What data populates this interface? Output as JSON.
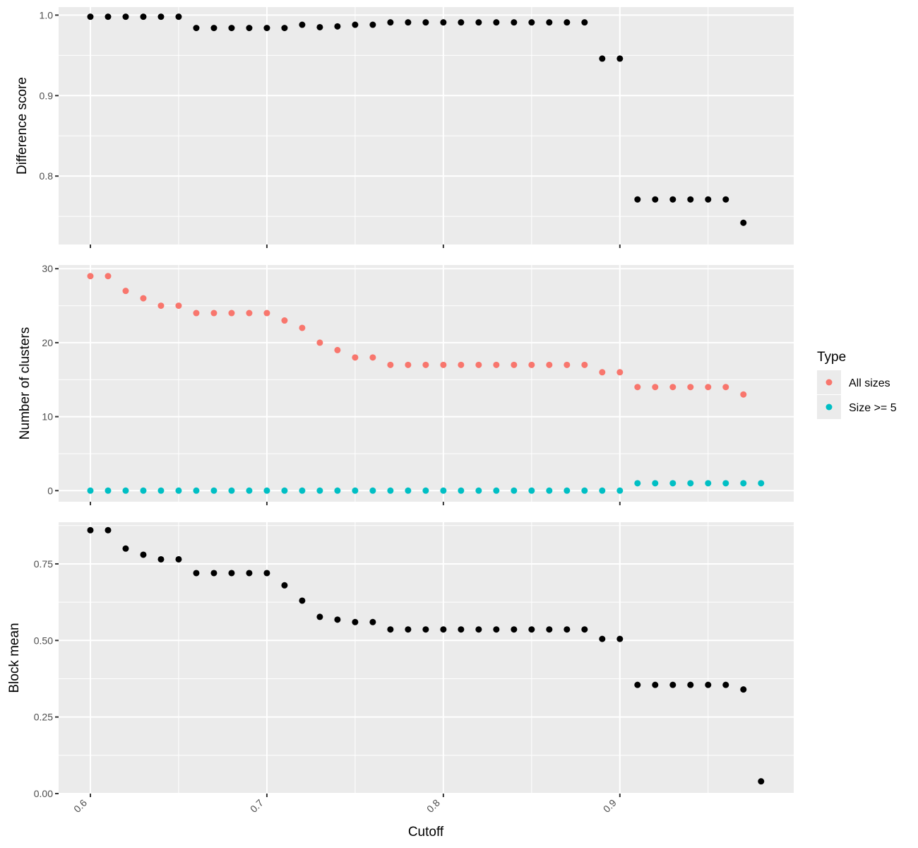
{
  "chart_data": [
    {
      "type": "scatter",
      "ylabel": "Difference score",
      "ylim": [
        0.715,
        1.01
      ],
      "yticks": [
        0.8,
        0.9,
        1.0
      ],
      "ytick_labels": [
        "0.8",
        "0.9",
        "1.0"
      ],
      "xlim": [
        0.582,
        0.9985
      ],
      "grid": true,
      "series": [
        {
          "color": "#000000",
          "x": [
            0.6,
            0.61,
            0.62,
            0.63,
            0.64,
            0.65,
            0.66,
            0.67,
            0.68,
            0.69,
            0.7,
            0.71,
            0.72,
            0.73,
            0.74,
            0.75,
            0.76,
            0.77,
            0.78,
            0.79,
            0.8,
            0.81,
            0.82,
            0.83,
            0.84,
            0.85,
            0.86,
            0.87,
            0.88,
            0.89,
            0.9,
            0.91,
            0.92,
            0.93,
            0.94,
            0.95,
            0.96,
            0.97
          ],
          "y": [
            0.998,
            0.998,
            0.998,
            0.998,
            0.998,
            0.998,
            0.984,
            0.984,
            0.984,
            0.984,
            0.984,
            0.984,
            0.988,
            0.985,
            0.986,
            0.988,
            0.988,
            0.991,
            0.991,
            0.991,
            0.991,
            0.991,
            0.991,
            0.991,
            0.991,
            0.991,
            0.991,
            0.991,
            0.991,
            0.946,
            0.946,
            0.771,
            0.771,
            0.771,
            0.771,
            0.771,
            0.771,
            0.742
          ]
        }
      ]
    },
    {
      "type": "scatter",
      "ylabel": "Number of clusters",
      "ylim": [
        -1.5,
        30.5
      ],
      "yticks": [
        0,
        10,
        20,
        30
      ],
      "ytick_labels": [
        "0",
        "10",
        "20",
        "30"
      ],
      "xlim": [
        0.582,
        0.9985
      ],
      "grid": true,
      "legend": {
        "title": "Type",
        "position": "right",
        "entries": [
          "All sizes",
          "Size >= 5"
        ]
      },
      "series": [
        {
          "name": "All sizes",
          "color": "#f8766d",
          "x": [
            0.6,
            0.61,
            0.62,
            0.63,
            0.64,
            0.65,
            0.66,
            0.67,
            0.68,
            0.69,
            0.7,
            0.71,
            0.72,
            0.73,
            0.74,
            0.75,
            0.76,
            0.77,
            0.78,
            0.79,
            0.8,
            0.81,
            0.82,
            0.83,
            0.84,
            0.85,
            0.86,
            0.87,
            0.88,
            0.89,
            0.9,
            0.91,
            0.92,
            0.93,
            0.94,
            0.95,
            0.96,
            0.97
          ],
          "y": [
            29,
            29,
            27,
            26,
            25,
            25,
            24,
            24,
            24,
            24,
            24,
            23,
            22,
            20,
            19,
            18,
            18,
            17,
            17,
            17,
            17,
            17,
            17,
            17,
            17,
            17,
            17,
            17,
            17,
            16,
            16,
            14,
            14,
            14,
            14,
            14,
            14,
            13
          ]
        },
        {
          "name": "Size >= 5",
          "color": "#00bfc4",
          "x": [
            0.6,
            0.61,
            0.62,
            0.63,
            0.64,
            0.65,
            0.66,
            0.67,
            0.68,
            0.69,
            0.7,
            0.71,
            0.72,
            0.73,
            0.74,
            0.75,
            0.76,
            0.77,
            0.78,
            0.79,
            0.8,
            0.81,
            0.82,
            0.83,
            0.84,
            0.85,
            0.86,
            0.87,
            0.88,
            0.89,
            0.9,
            0.91,
            0.92,
            0.93,
            0.94,
            0.95,
            0.96,
            0.97,
            0.98
          ],
          "y": [
            0,
            0,
            0,
            0,
            0,
            0,
            0,
            0,
            0,
            0,
            0,
            0,
            0,
            0,
            0,
            0,
            0,
            0,
            0,
            0,
            0,
            0,
            0,
            0,
            0,
            0,
            0,
            0,
            0,
            0,
            0,
            1,
            1,
            1,
            1,
            1,
            1,
            1,
            1
          ]
        }
      ]
    },
    {
      "type": "scatter",
      "ylabel": "Block mean",
      "xlabel": "Cutoff",
      "ylim": [
        0.0,
        0.886
      ],
      "yticks": [
        0.0,
        0.25,
        0.5,
        0.75
      ],
      "ytick_labels": [
        "0.00",
        "0.25",
        "0.50",
        "0.75"
      ],
      "xlim": [
        0.582,
        0.9985
      ],
      "xticks": [
        0.6,
        0.7,
        0.8,
        0.9
      ],
      "xtick_labels": [
        "0.6",
        "0.7",
        "0.8",
        "0.9"
      ],
      "grid": true,
      "series": [
        {
          "color": "#000000",
          "x": [
            0.6,
            0.61,
            0.62,
            0.63,
            0.64,
            0.65,
            0.66,
            0.67,
            0.68,
            0.69,
            0.7,
            0.71,
            0.72,
            0.73,
            0.74,
            0.75,
            0.76,
            0.77,
            0.78,
            0.79,
            0.8,
            0.81,
            0.82,
            0.83,
            0.84,
            0.85,
            0.86,
            0.87,
            0.88,
            0.89,
            0.9,
            0.91,
            0.92,
            0.93,
            0.94,
            0.95,
            0.96,
            0.97,
            0.98
          ],
          "y": [
            0.86,
            0.86,
            0.8,
            0.78,
            0.765,
            0.765,
            0.72,
            0.72,
            0.72,
            0.72,
            0.72,
            0.68,
            0.63,
            0.577,
            0.568,
            0.56,
            0.56,
            0.536,
            0.536,
            0.536,
            0.536,
            0.536,
            0.536,
            0.536,
            0.536,
            0.536,
            0.536,
            0.536,
            0.536,
            0.505,
            0.505,
            0.355,
            0.355,
            0.355,
            0.355,
            0.355,
            0.355,
            0.34,
            0.04
          ]
        }
      ]
    }
  ]
}
